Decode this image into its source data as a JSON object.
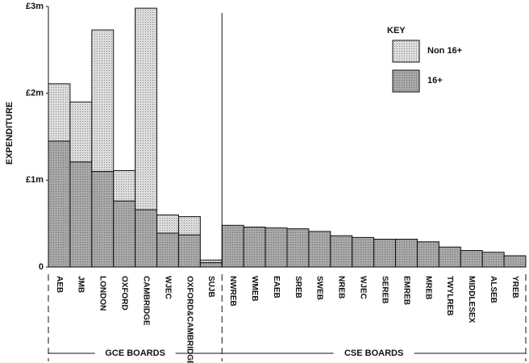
{
  "chart_data": {
    "type": "stacked-bar",
    "y_label": "EXPENDITURE",
    "groups": [
      {
        "name": "GCE BOARDS",
        "categories": [
          "AEB",
          "JMB",
          "LONDON",
          "OXFORD",
          "CAMBRIDGE",
          "WJEC",
          "OXFORD&CAMBRIDGE",
          "SUJB"
        ]
      },
      {
        "name": "CSE BOARDS",
        "categories": [
          "NWREB",
          "WMEB",
          "EAEB",
          "SREB",
          "SWEB",
          "NREB",
          "WJEC",
          "SEREB",
          "EMREB",
          "MREB",
          "TWYLREB",
          "MIDDLESEX",
          "ALSEB",
          "YREB"
        ]
      }
    ],
    "series": [
      {
        "name": "16+",
        "color": "#a8a8a8",
        "values": [
          1.45,
          1.21,
          1.1,
          0.76,
          0.66,
          0.39,
          0.37,
          0.05,
          0.48,
          0.46,
          0.45,
          0.44,
          0.41,
          0.36,
          0.34,
          0.32,
          0.32,
          0.29,
          0.23,
          0.19,
          0.17,
          0.13
        ]
      },
      {
        "name": "Non 16+",
        "color": "#dcdcdc",
        "values": [
          0.66,
          0.69,
          1.63,
          0.35,
          2.32,
          0.21,
          0.21,
          0.03,
          null,
          null,
          null,
          null,
          null,
          null,
          null,
          null,
          null,
          null,
          null,
          null,
          null,
          null
        ]
      }
    ],
    "legend_title": "KEY",
    "legend": "top-right",
    "ylim": [
      0,
      3
    ],
    "yticks": [
      0,
      {
        "value": 1,
        "label": "£1m"
      },
      {
        "value": 2,
        "label": "£2m"
      },
      {
        "value": 3,
        "label": "£3m"
      }
    ]
  }
}
